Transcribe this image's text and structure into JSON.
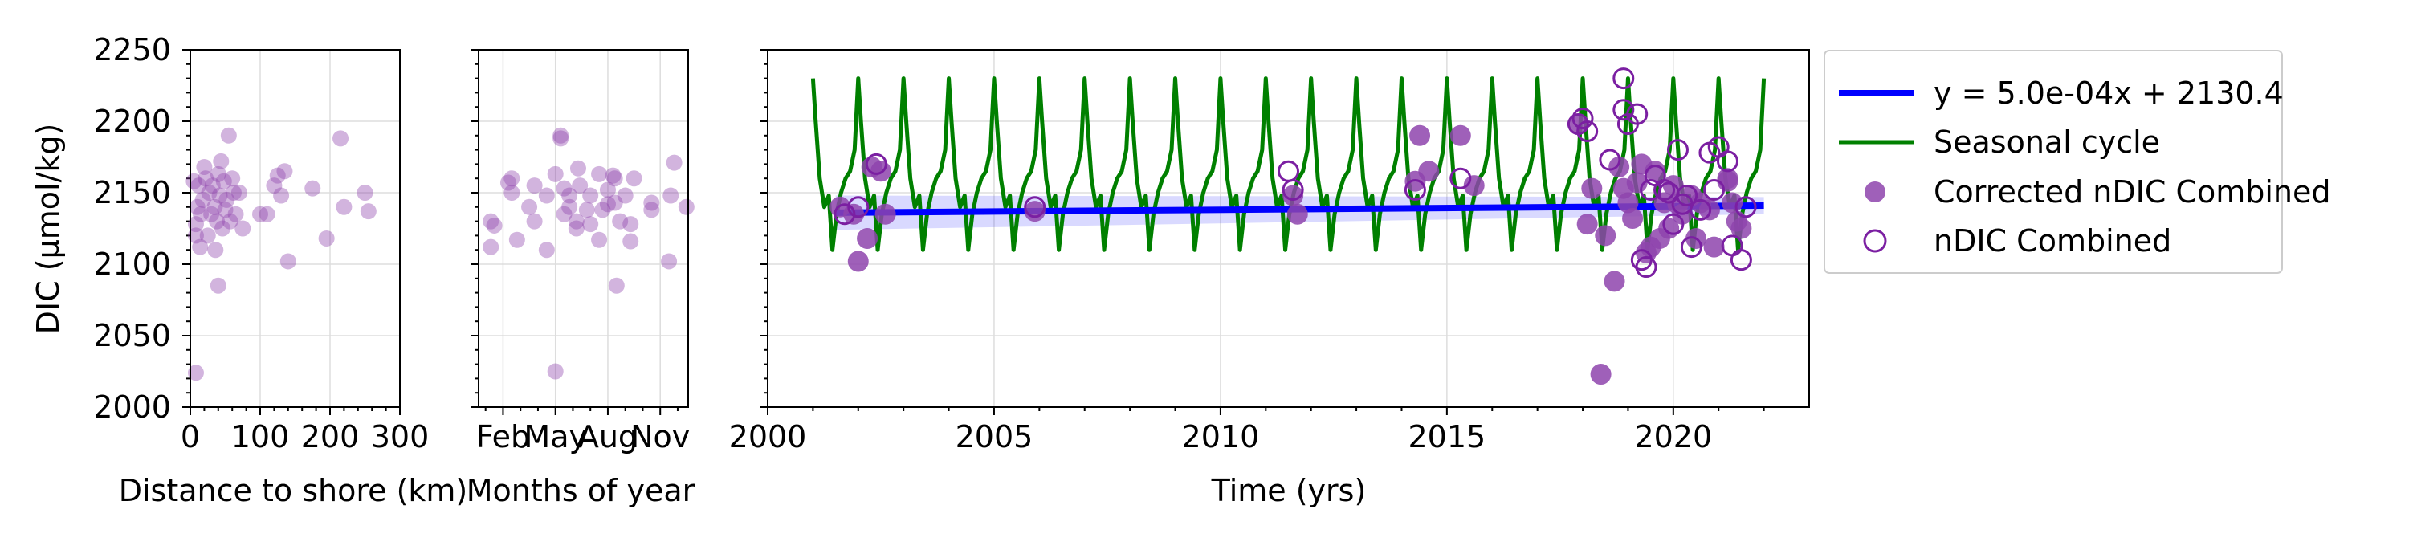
{
  "chart_data": [
    {
      "type": "scatter",
      "xlabel": "Distance to shore (km)",
      "ylabel": "DIC (µmol/kg)",
      "xlim": [
        0,
        300
      ],
      "ylim": [
        2000,
        2250
      ],
      "xticks": [
        "0",
        "100",
        "200",
        "300"
      ],
      "yticks": [
        "2000",
        "2050",
        "2100",
        "2150",
        "2200",
        "2250"
      ],
      "grid": true,
      "point_color": "#8e44ad",
      "points": [
        [
          5,
          2158
        ],
        [
          8,
          2128
        ],
        [
          8,
          2120
        ],
        [
          10,
          2140
        ],
        [
          12,
          2155
        ],
        [
          14,
          2112
        ],
        [
          15,
          2135
        ],
        [
          18,
          2145
        ],
        [
          20,
          2168
        ],
        [
          22,
          2160
        ],
        [
          25,
          2120
        ],
        [
          27,
          2150
        ],
        [
          30,
          2135
        ],
        [
          32,
          2155
        ],
        [
          35,
          2140
        ],
        [
          36,
          2110
        ],
        [
          38,
          2130
        ],
        [
          40,
          2163
        ],
        [
          40,
          2085
        ],
        [
          42,
          2148
        ],
        [
          44,
          2172
        ],
        [
          46,
          2125
        ],
        [
          48,
          2158
        ],
        [
          50,
          2138
        ],
        [
          52,
          2145
        ],
        [
          55,
          2190
        ],
        [
          57,
          2130
        ],
        [
          60,
          2160
        ],
        [
          62,
          2150
        ],
        [
          65,
          2135
        ],
        [
          70,
          2150
        ],
        [
          75,
          2125
        ],
        [
          100,
          2135
        ],
        [
          110,
          2135
        ],
        [
          120,
          2155
        ],
        [
          125,
          2162
        ],
        [
          130,
          2148
        ],
        [
          135,
          2165
        ],
        [
          140,
          2102
        ],
        [
          175,
          2153
        ],
        [
          195,
          2118
        ],
        [
          215,
          2188
        ],
        [
          220,
          2140
        ],
        [
          250,
          2150
        ],
        [
          255,
          2137
        ],
        [
          8,
          2024
        ]
      ]
    },
    {
      "type": "scatter",
      "xlabel": "Months of year",
      "xticks": [
        "Feb",
        "May",
        "Aug",
        "Nov"
      ],
      "xtick_months": [
        2,
        5,
        8,
        11
      ],
      "xlim": [
        0.6,
        12.6
      ],
      "ylim": [
        2000,
        2250
      ],
      "grid": true,
      "point_color": "#8e44ad",
      "points": [
        [
          1.3,
          2130
        ],
        [
          1.3,
          2112
        ],
        [
          1.5,
          2127
        ],
        [
          2.3,
          2157
        ],
        [
          2.5,
          2150
        ],
        [
          2.5,
          2160
        ],
        [
          2.8,
          2117
        ],
        [
          3.5,
          2140
        ],
        [
          3.8,
          2155
        ],
        [
          3.8,
          2130
        ],
        [
          4.5,
          2110
        ],
        [
          4.5,
          2148
        ],
        [
          5.0,
          2025
        ],
        [
          5.0,
          2163
        ],
        [
          5.3,
          2190
        ],
        [
          5.3,
          2188
        ],
        [
          5.5,
          2153
        ],
        [
          5.5,
          2135
        ],
        [
          5.8,
          2148
        ],
        [
          5.8,
          2140
        ],
        [
          6.2,
          2130
        ],
        [
          6.2,
          2125
        ],
        [
          6.3,
          2167
        ],
        [
          6.4,
          2155
        ],
        [
          6.8,
          2138
        ],
        [
          7.0,
          2148
        ],
        [
          7.0,
          2128
        ],
        [
          7.5,
          2117
        ],
        [
          7.5,
          2163
        ],
        [
          7.7,
          2138
        ],
        [
          8.0,
          2152
        ],
        [
          8.0,
          2142
        ],
        [
          8.3,
          2162
        ],
        [
          8.4,
          2160
        ],
        [
          8.4,
          2143
        ],
        [
          8.5,
          2085
        ],
        [
          8.7,
          2130
        ],
        [
          9.0,
          2148
        ],
        [
          9.3,
          2128
        ],
        [
          9.3,
          2116
        ],
        [
          9.5,
          2160
        ],
        [
          10.5,
          2143
        ],
        [
          10.5,
          2138
        ],
        [
          11.5,
          2102
        ],
        [
          11.6,
          2148
        ],
        [
          11.8,
          2171
        ],
        [
          12.5,
          2140
        ]
      ]
    },
    {
      "type": "line",
      "xlabel": "Time (yrs)",
      "xlim": [
        2000,
        2023
      ],
      "ylim": [
        2000,
        2250
      ],
      "xticks": [
        "2000",
        "2005",
        "2010",
        "2015",
        "2020"
      ],
      "grid": true,
      "legend_position": "outside-right-top",
      "trend": {
        "name": "y = 5.0e-04x + 2130.4",
        "color": "#0000ff",
        "x": [
          2001.5,
          2022.0
        ],
        "y": [
          2136.0,
          2141.0
        ],
        "band": [
          12,
          6
        ]
      },
      "seasonal": {
        "name": "Seasonal cycle",
        "color": "#008000",
        "start": 2001.0,
        "end": 2022.0,
        "period": 1.0,
        "profile": [
          [
            0.0,
            2230
          ],
          [
            0.06,
            2200
          ],
          [
            0.15,
            2160
          ],
          [
            0.25,
            2140
          ],
          [
            0.35,
            2148
          ],
          [
            0.43,
            2110
          ],
          [
            0.52,
            2135
          ],
          [
            0.62,
            2150
          ],
          [
            0.72,
            2160
          ],
          [
            0.82,
            2165
          ],
          [
            0.92,
            2180
          ],
          [
            1.0,
            2230
          ]
        ]
      },
      "corrected": {
        "name": "Corrected nDIC Combined",
        "color": "#8e44ad",
        "points": [
          [
            2001.6,
            2140
          ],
          [
            2001.9,
            2135
          ],
          [
            2002.0,
            2102
          ],
          [
            2002.2,
            2118
          ],
          [
            2002.3,
            2168
          ],
          [
            2002.5,
            2165
          ],
          [
            2002.6,
            2135
          ],
          [
            2005.9,
            2137
          ],
          [
            2011.6,
            2148
          ],
          [
            2011.7,
            2135
          ],
          [
            2014.3,
            2158
          ],
          [
            2014.4,
            2190
          ],
          [
            2014.6,
            2165
          ],
          [
            2015.3,
            2190
          ],
          [
            2015.6,
            2155
          ],
          [
            2017.9,
            2198
          ],
          [
            2018.1,
            2128
          ],
          [
            2018.2,
            2153
          ],
          [
            2018.4,
            2023
          ],
          [
            2018.5,
            2120
          ],
          [
            2018.7,
            2088
          ],
          [
            2018.8,
            2168
          ],
          [
            2018.9,
            2153
          ],
          [
            2019.0,
            2143
          ],
          [
            2019.1,
            2132
          ],
          [
            2019.2,
            2157
          ],
          [
            2019.3,
            2170
          ],
          [
            2019.4,
            2108
          ],
          [
            2019.5,
            2112
          ],
          [
            2019.6,
            2165
          ],
          [
            2019.7,
            2118
          ],
          [
            2019.8,
            2143
          ],
          [
            2019.9,
            2125
          ],
          [
            2020.0,
            2155
          ],
          [
            2020.1,
            2142
          ],
          [
            2020.2,
            2135
          ],
          [
            2020.4,
            2148
          ],
          [
            2020.5,
            2118
          ],
          [
            2020.6,
            2143
          ],
          [
            2020.8,
            2138
          ],
          [
            2020.9,
            2112
          ],
          [
            2021.2,
            2160
          ],
          [
            2021.3,
            2143
          ],
          [
            2021.4,
            2130
          ],
          [
            2021.5,
            2125
          ],
          [
            2021.2,
            2158
          ]
        ]
      },
      "uncorrected": {
        "name": "nDIC Combined",
        "color": "#7b1fa2",
        "points": [
          [
            2001.7,
            2135
          ],
          [
            2002.0,
            2140
          ],
          [
            2002.4,
            2170
          ],
          [
            2005.9,
            2140
          ],
          [
            2011.5,
            2165
          ],
          [
            2011.6,
            2152
          ],
          [
            2014.3,
            2152
          ],
          [
            2015.3,
            2160
          ],
          [
            2017.9,
            2198
          ],
          [
            2018.0,
            2202
          ],
          [
            2018.1,
            2193
          ],
          [
            2018.6,
            2173
          ],
          [
            2018.9,
            2230
          ],
          [
            2018.9,
            2208
          ],
          [
            2019.0,
            2198
          ],
          [
            2019.2,
            2205
          ],
          [
            2019.3,
            2103
          ],
          [
            2019.4,
            2098
          ],
          [
            2019.5,
            2152
          ],
          [
            2019.6,
            2162
          ],
          [
            2019.8,
            2152
          ],
          [
            2019.9,
            2150
          ],
          [
            2020.0,
            2128
          ],
          [
            2020.1,
            2180
          ],
          [
            2020.2,
            2142
          ],
          [
            2020.3,
            2148
          ],
          [
            2020.4,
            2112
          ],
          [
            2020.6,
            2138
          ],
          [
            2020.8,
            2178
          ],
          [
            2020.9,
            2152
          ],
          [
            2021.0,
            2182
          ],
          [
            2021.2,
            2172
          ],
          [
            2021.3,
            2113
          ],
          [
            2021.5,
            2103
          ],
          [
            2021.6,
            2140
          ]
        ]
      }
    }
  ]
}
